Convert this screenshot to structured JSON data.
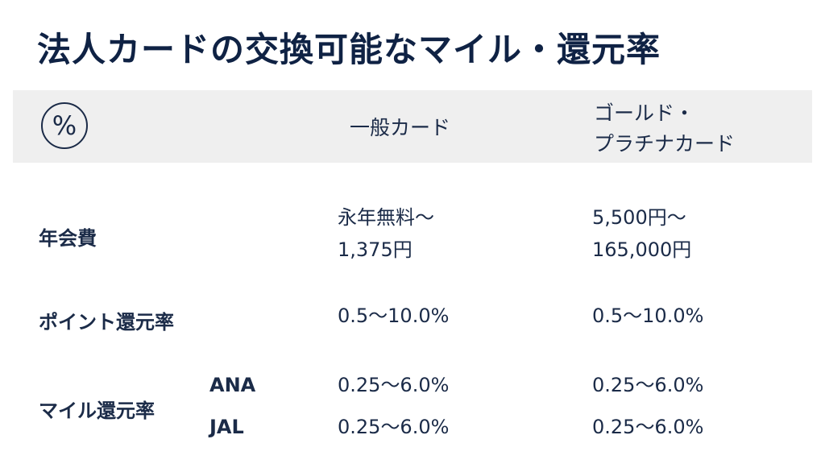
{
  "title": "法人カードの交換可能なマイル・還元率",
  "header": {
    "icon": "percent-circle-icon",
    "col1": "一般カード",
    "col2_line1": "ゴールド・",
    "col2_line2": "プラチナカード"
  },
  "rows": {
    "annual_fee": {
      "label": "年会費",
      "general_line1": "永年無料～",
      "general_line2": "1,375円",
      "gold_line1": "5,500円～",
      "gold_line2": "165,000円"
    },
    "point_rate": {
      "label": "ポイント還元率",
      "general": "0.5～10.0%",
      "gold": "0.5～10.0%"
    },
    "mile_rate": {
      "label": "マイル還元率",
      "ana_label": "ANA",
      "jal_label": "JAL",
      "ana_general": "0.25～6.0%",
      "ana_gold": "0.25～6.0%",
      "jal_general": "0.25～6.0%",
      "jal_gold": "0.25～6.0%"
    }
  },
  "colors": {
    "title": "#0f2244",
    "text": "#1b2b48",
    "header_band": "#efefef"
  }
}
